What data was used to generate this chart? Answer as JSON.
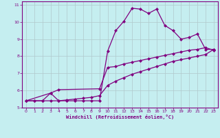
{
  "xlabel": "Windchill (Refroidissement éolien,°C)",
  "xlim": [
    -0.5,
    23.5
  ],
  "ylim": [
    5,
    11.2
  ],
  "xticks": [
    0,
    1,
    2,
    3,
    4,
    5,
    6,
    7,
    8,
    9,
    10,
    11,
    12,
    13,
    14,
    15,
    16,
    17,
    18,
    19,
    20,
    21,
    22,
    23
  ],
  "yticks": [
    5,
    6,
    7,
    8,
    9,
    10,
    11
  ],
  "line_color": "#800080",
  "bg_color": "#c5eef0",
  "grid_color": "#b0c8cc",
  "line1_x": [
    0,
    1,
    2,
    3,
    4,
    5,
    6,
    7,
    8,
    9,
    10,
    11,
    12,
    13,
    14,
    15,
    16,
    17,
    18,
    19,
    20,
    21,
    22,
    23
  ],
  "line1_y": [
    5.4,
    5.4,
    5.4,
    5.85,
    5.4,
    5.4,
    5.4,
    5.4,
    5.4,
    5.4,
    8.3,
    9.5,
    10.05,
    10.8,
    10.75,
    10.5,
    10.75,
    9.8,
    9.5,
    9.0,
    9.1,
    9.3,
    8.4,
    8.4
  ],
  "line2_x": [
    0,
    3,
    4,
    9,
    10,
    11,
    12,
    13,
    14,
    15,
    16,
    17,
    18,
    19,
    20,
    21,
    22,
    23
  ],
  "line2_y": [
    5.4,
    5.85,
    6.05,
    6.1,
    7.35,
    7.4,
    7.55,
    7.65,
    7.75,
    7.85,
    7.95,
    8.05,
    8.15,
    8.25,
    8.35,
    8.4,
    8.5,
    8.35
  ],
  "line3_x": [
    0,
    1,
    2,
    3,
    4,
    5,
    6,
    7,
    8,
    9,
    10,
    11,
    12,
    13,
    14,
    15,
    16,
    17,
    18,
    19,
    20,
    21,
    22,
    23
  ],
  "line3_y": [
    5.4,
    5.4,
    5.4,
    5.4,
    5.4,
    5.45,
    5.5,
    5.55,
    5.6,
    5.7,
    6.3,
    6.55,
    6.75,
    6.95,
    7.1,
    7.25,
    7.4,
    7.55,
    7.7,
    7.8,
    7.9,
    8.0,
    8.1,
    8.4
  ]
}
